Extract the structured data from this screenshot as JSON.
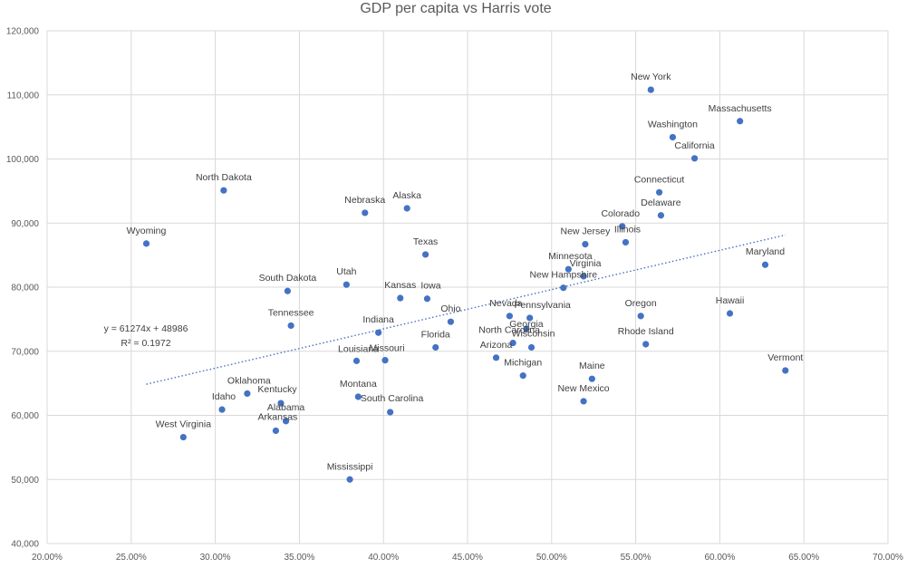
{
  "chart_data": {
    "type": "scatter",
    "title": "GDP per capita vs Harris vote",
    "xlabel": "",
    "ylabel": "",
    "xlim": [
      0.2,
      0.7
    ],
    "ylim": [
      40000,
      120000
    ],
    "x_ticks": [
      0.2,
      0.25,
      0.3,
      0.35,
      0.4,
      0.45,
      0.5,
      0.55,
      0.6,
      0.65,
      0.7
    ],
    "x_tick_labels": [
      "20.00%",
      "25.00%",
      "30.00%",
      "35.00%",
      "40.00%",
      "45.00%",
      "50.00%",
      "55.00%",
      "60.00%",
      "65.00%",
      "70.00%"
    ],
    "y_ticks": [
      40000,
      50000,
      60000,
      70000,
      80000,
      90000,
      100000,
      110000,
      120000
    ],
    "y_tick_labels": [
      "40,000",
      "50,000",
      "60,000",
      "70,000",
      "80,000",
      "90,000",
      "100,000",
      "110,000",
      "120,000"
    ],
    "grid": true,
    "series": [
      {
        "name": "States",
        "points": [
          {
            "label": "New York",
            "x": 0.559,
            "y": 110800
          },
          {
            "label": "Massachusetts",
            "x": 0.612,
            "y": 105900
          },
          {
            "label": "Washington",
            "x": 0.572,
            "y": 103400
          },
          {
            "label": "California",
            "x": 0.585,
            "y": 100100
          },
          {
            "label": "North Dakota",
            "x": 0.305,
            "y": 95100
          },
          {
            "label": "Connecticut",
            "x": 0.564,
            "y": 94800
          },
          {
            "label": "Nebraska",
            "x": 0.389,
            "y": 91600
          },
          {
            "label": "Alaska",
            "x": 0.414,
            "y": 92300
          },
          {
            "label": "Delaware",
            "x": 0.565,
            "y": 91200
          },
          {
            "label": "Colorado",
            "x": 0.542,
            "y": 89500
          },
          {
            "label": "Illinois",
            "x": 0.544,
            "y": 87000
          },
          {
            "label": "New Jersey",
            "x": 0.52,
            "y": 86700
          },
          {
            "label": "Wyoming",
            "x": 0.259,
            "y": 86800
          },
          {
            "label": "Texas",
            "x": 0.425,
            "y": 85100
          },
          {
            "label": "Maryland",
            "x": 0.627,
            "y": 83500
          },
          {
            "label": "Minnesota",
            "x": 0.51,
            "y": 82800
          },
          {
            "label": "Virginia",
            "x": 0.519,
            "y": 81700
          },
          {
            "label": "Utah",
            "x": 0.378,
            "y": 80400
          },
          {
            "label": "New Hampshire",
            "x": 0.507,
            "y": 79900
          },
          {
            "label": "South Dakota",
            "x": 0.343,
            "y": 79400
          },
          {
            "label": "Kansas",
            "x": 0.41,
            "y": 78300
          },
          {
            "label": "Iowa",
            "x": 0.426,
            "y": 78200
          },
          {
            "label": "Nevada",
            "x": 0.475,
            "y": 75500
          },
          {
            "label": "Pennsylvania",
            "x": 0.487,
            "y": 75200
          },
          {
            "label": "Oregon",
            "x": 0.553,
            "y": 75500
          },
          {
            "label": "Hawaii",
            "x": 0.606,
            "y": 75900
          },
          {
            "label": "Ohio",
            "x": 0.44,
            "y": 74600
          },
          {
            "label": "Tennessee",
            "x": 0.345,
            "y": 74000
          },
          {
            "label": "Georgia",
            "x": 0.485,
            "y": 73500
          },
          {
            "label": "Indiana",
            "x": 0.397,
            "y": 72900
          },
          {
            "label": "North Carolina",
            "x": 0.477,
            "y": 71300
          },
          {
            "label": "Rhode Island",
            "x": 0.556,
            "y": 71100
          },
          {
            "label": "Wisconsin",
            "x": 0.488,
            "y": 70600
          },
          {
            "label": "Florida",
            "x": 0.431,
            "y": 70600
          },
          {
            "label": "Arizona",
            "x": 0.467,
            "y": 69000
          },
          {
            "label": "Louisiana",
            "x": 0.384,
            "y": 68500
          },
          {
            "label": "Missouri",
            "x": 0.401,
            "y": 68600
          },
          {
            "label": "Vermont",
            "x": 0.639,
            "y": 67000
          },
          {
            "label": "Michigan",
            "x": 0.483,
            "y": 66200
          },
          {
            "label": "Maine",
            "x": 0.524,
            "y": 65700
          },
          {
            "label": "Oklahoma",
            "x": 0.319,
            "y": 63400
          },
          {
            "label": "Montana",
            "x": 0.385,
            "y": 62900
          },
          {
            "label": "New Mexico",
            "x": 0.519,
            "y": 62200
          },
          {
            "label": "Kentucky",
            "x": 0.339,
            "y": 61900
          },
          {
            "label": "Idaho",
            "x": 0.304,
            "y": 60900
          },
          {
            "label": "South Carolina",
            "x": 0.404,
            "y": 60500
          },
          {
            "label": "Alabama",
            "x": 0.342,
            "y": 59100
          },
          {
            "label": "Arkansas",
            "x": 0.336,
            "y": 57600
          },
          {
            "label": "West Virginia",
            "x": 0.281,
            "y": 56600
          },
          {
            "label": "Mississippi",
            "x": 0.38,
            "y": 50000
          }
        ]
      }
    ],
    "trendline": {
      "type": "linear",
      "slope": 61274,
      "intercept": 48986,
      "r_squared": 0.1972,
      "x_range": [
        0.259,
        0.639
      ],
      "equation_label": "y = 61274x + 48986",
      "r2_label": "R² = 0.1972"
    },
    "legend": "none"
  }
}
